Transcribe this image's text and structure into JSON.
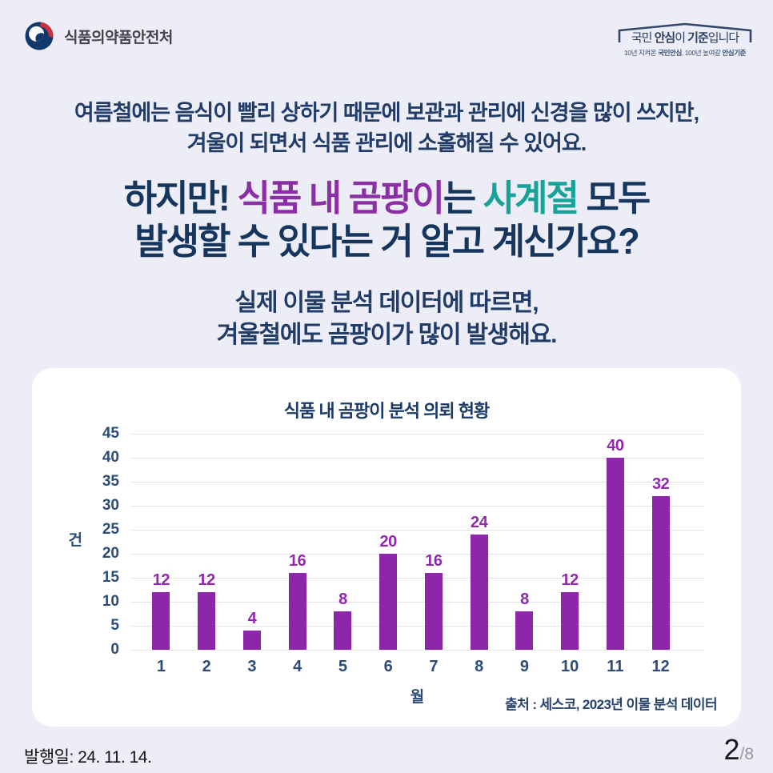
{
  "header": {
    "agency_name": "식품의약품안전처",
    "slogan_main_parts": [
      {
        "text": "국민 ",
        "cls": "r"
      },
      {
        "text": "안심",
        "cls": "b"
      },
      {
        "text": "이 ",
        "cls": "r"
      },
      {
        "text": "기준",
        "cls": "b"
      },
      {
        "text": "입니다",
        "cls": "r"
      }
    ],
    "slogan_sub_parts": [
      {
        "text": "10년 지켜온 ",
        "cls": "r"
      },
      {
        "text": "국민안심",
        "cls": "b"
      },
      {
        "text": ", 100년 높여갈 ",
        "cls": "r"
      },
      {
        "text": "안심기준",
        "cls": "b"
      }
    ]
  },
  "intro": {
    "line1": "여름철에는 음식이 빨리 상하기 때문에 보관과 관리에 신경을 많이 쓰지만,",
    "line2": "겨울이 되면서 식품 관리에 소홀해질 수 있어요."
  },
  "headline": {
    "line1_parts": [
      {
        "text": "하지만! ",
        "cls": "navy"
      },
      {
        "text": "식품 내 곰팡이",
        "cls": "purple"
      },
      {
        "text": "는 ",
        "cls": "navy"
      },
      {
        "text": "사계절",
        "cls": "teal"
      },
      {
        "text": " 모두",
        "cls": "navy"
      }
    ],
    "line2": "발생할 수 있다는 거 알고 계신가요?"
  },
  "subtext": {
    "line1": "실제 이물 분석 데이터에 따르면,",
    "line2": "겨울철에도 곰팡이가 많이 발생해요."
  },
  "chart_data": {
    "type": "bar",
    "title": "식품 내 곰팡이 분석 의뢰 현황",
    "categories": [
      "1",
      "2",
      "3",
      "4",
      "5",
      "6",
      "7",
      "8",
      "9",
      "10",
      "11",
      "12"
    ],
    "values": [
      12,
      12,
      4,
      16,
      8,
      20,
      16,
      24,
      8,
      12,
      40,
      32
    ],
    "xlabel": "월",
    "ylabel": "건",
    "ylim": [
      0,
      45
    ],
    "ytick_step": 5,
    "grid": true,
    "legend": "none",
    "bar_color": "#8e26a9",
    "value_label_color": "#9229ad",
    "axis_text_color": "#2a4c77",
    "source": "출처 : 세스코, 2023년 이물 분석 데이터"
  },
  "footer": {
    "publish_date": "발행일: 24. 11. 14.",
    "page_current": "2",
    "page_total": "/8"
  },
  "colors": {
    "page_background": "#ecedf7",
    "card_background": "#ffffff",
    "navy_text": "#16365e",
    "purple_accent": "#8b2fa5",
    "teal_accent": "#17a398",
    "bar_purple": "#8e26a9",
    "logo_red": "#cf2e3c",
    "logo_navy": "#11386b"
  }
}
